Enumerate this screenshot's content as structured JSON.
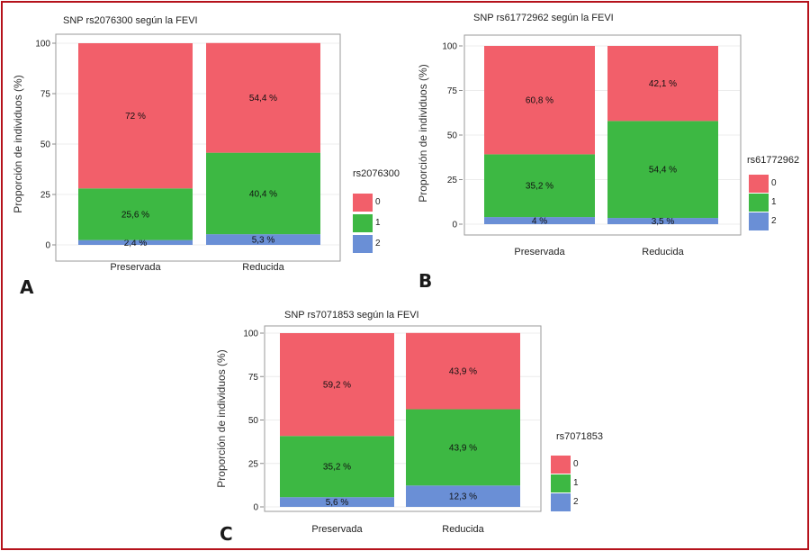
{
  "chart_data": [
    {
      "panel": "A",
      "type": "bar",
      "stacked": true,
      "title": "SNP rs2076300 según la FEVI",
      "xlabel": "",
      "ylabel": "Proporción de individuos (%)",
      "ylim": [
        0,
        100
      ],
      "yticks": [
        "0",
        "25",
        "50",
        "75",
        "100"
      ],
      "categories": [
        "Preservada",
        "Reducida"
      ],
      "legend_title": "rs2076300",
      "series": [
        {
          "name": "2",
          "color": "#6a8fd6",
          "values": [
            2.4,
            5.3
          ],
          "labels": [
            "2,4 %",
            "5,3 %"
          ]
        },
        {
          "name": "1",
          "color": "#3db843",
          "values": [
            25.6,
            40.4
          ],
          "labels": [
            "25,6 %",
            "40,4 %"
          ]
        },
        {
          "name": "0",
          "color": "#f25f6a",
          "values": [
            72,
            54.4
          ],
          "labels": [
            "72 %",
            "54,4 %"
          ]
        }
      ]
    },
    {
      "panel": "B",
      "type": "bar",
      "stacked": true,
      "title": "SNP rs61772962 según la FEVI",
      "xlabel": "",
      "ylabel": "Proporción de individuos (%)",
      "ylim": [
        0,
        100
      ],
      "yticks": [
        "0",
        "25",
        "50",
        "75",
        "100"
      ],
      "categories": [
        "Preservada",
        "Reducida"
      ],
      "legend_title": "rs61772962",
      "series": [
        {
          "name": "2",
          "color": "#6a8fd6",
          "values": [
            4,
            3.5
          ],
          "labels": [
            "4 %",
            "3,5 %"
          ]
        },
        {
          "name": "1",
          "color": "#3db843",
          "values": [
            35.2,
            54.4
          ],
          "labels": [
            "35,2 %",
            "54,4 %"
          ]
        },
        {
          "name": "0",
          "color": "#f25f6a",
          "values": [
            60.8,
            42.1
          ],
          "labels": [
            "60,8 %",
            "42,1 %"
          ]
        }
      ]
    },
    {
      "panel": "C",
      "type": "bar",
      "stacked": true,
      "title": "SNP rs7071853 según la FEVI",
      "xlabel": "",
      "ylabel": "Proporción de individuos (%)",
      "ylim": [
        0,
        100
      ],
      "yticks": [
        "0",
        "25",
        "50",
        "75",
        "100"
      ],
      "categories": [
        "Preservada",
        "Reducida"
      ],
      "legend_title": "rs7071853",
      "series": [
        {
          "name": "2",
          "color": "#6a8fd6",
          "values": [
            5.6,
            12.3
          ],
          "labels": [
            "5,6 %",
            "12,3 %"
          ]
        },
        {
          "name": "1",
          "color": "#3db843",
          "values": [
            35.2,
            43.9
          ],
          "labels": [
            "35,2 %",
            "43,9 %"
          ]
        },
        {
          "name": "0",
          "color": "#f25f6a",
          "values": [
            59.2,
            43.9
          ],
          "labels": [
            "59,2 %",
            "43,9 %"
          ]
        }
      ]
    }
  ]
}
